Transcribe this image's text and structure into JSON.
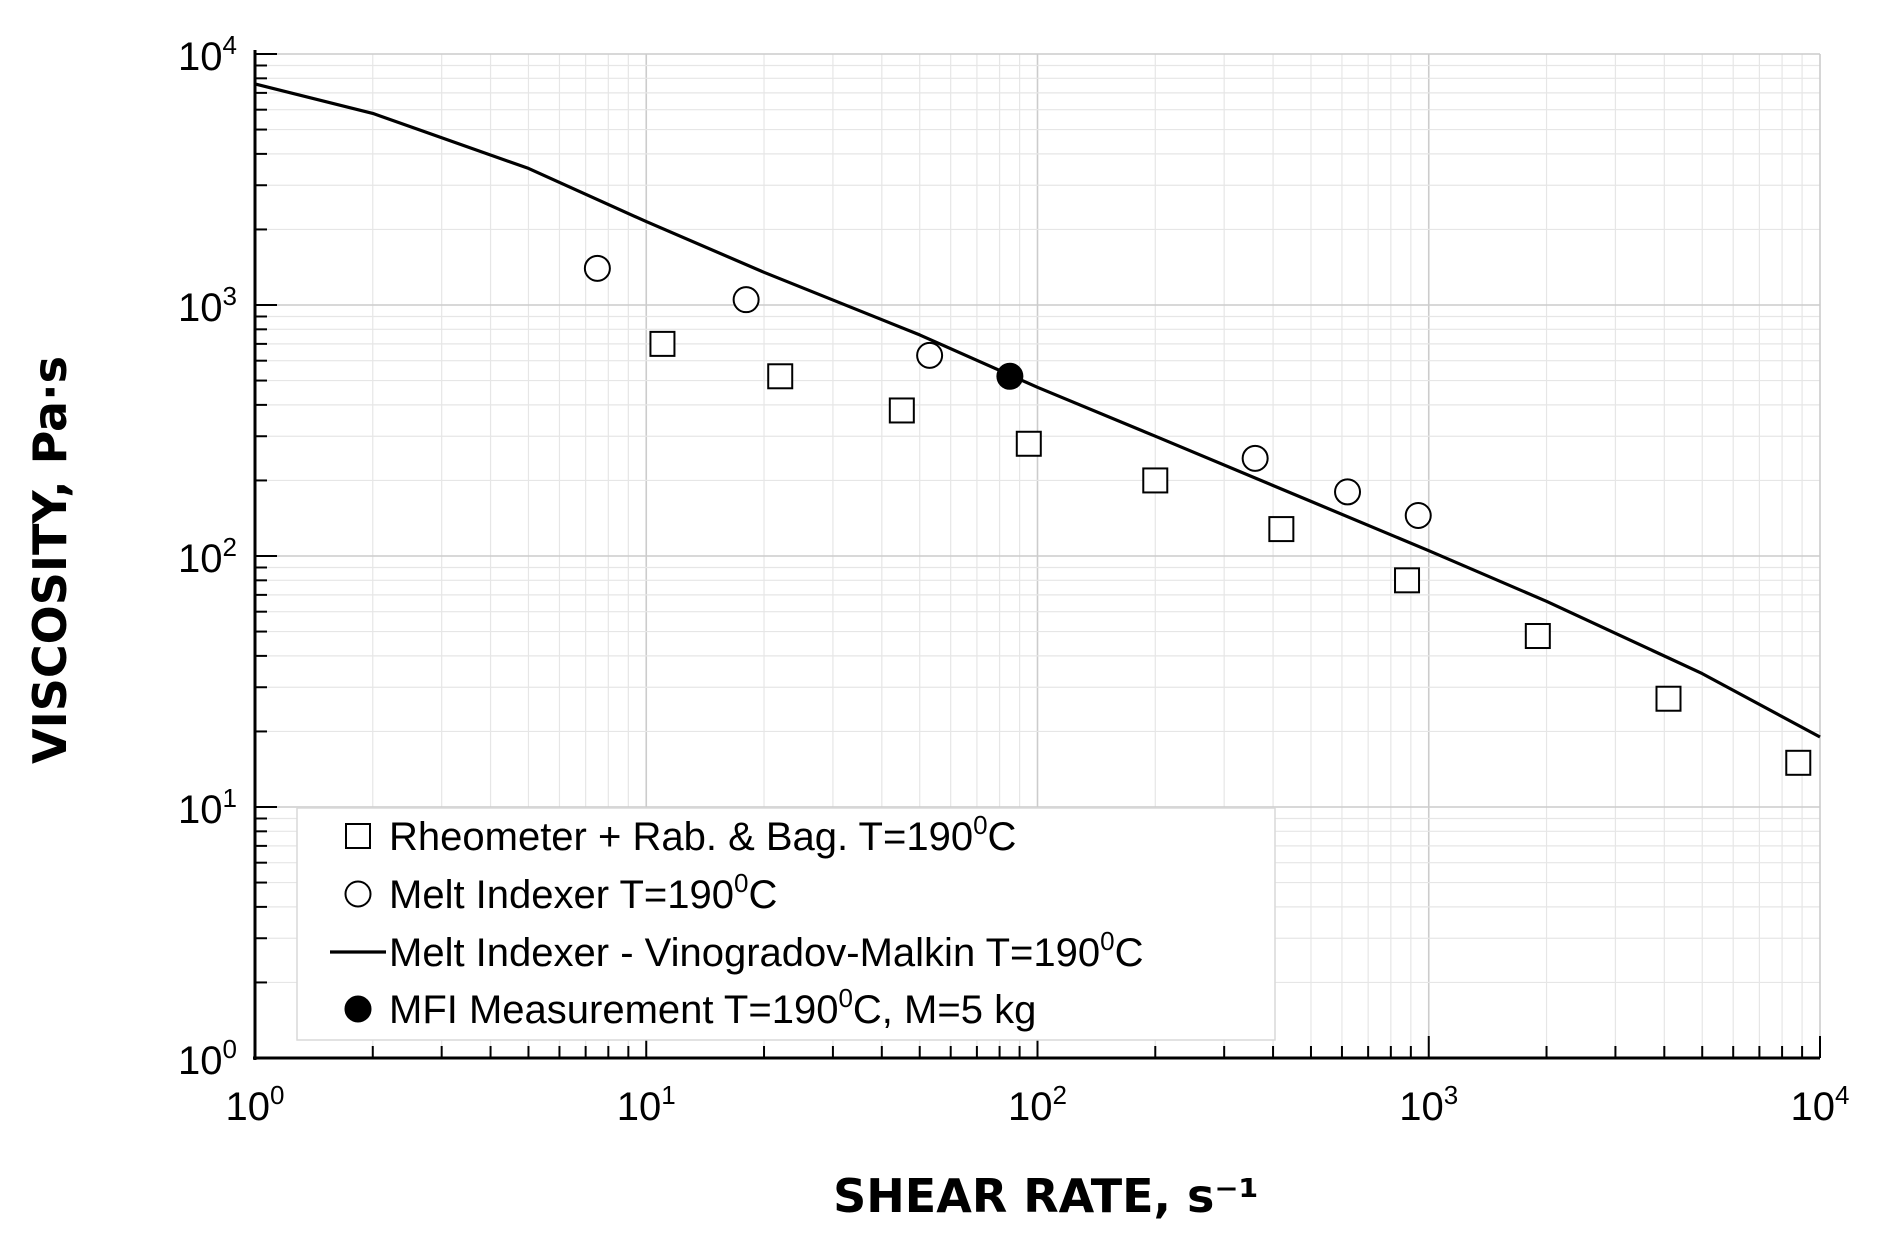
{
  "chart_data": {
    "type": "scatter",
    "x_scale": "log",
    "y_scale": "log",
    "xlim": [
      1,
      10000
    ],
    "ylim": [
      1,
      10000
    ],
    "xlabel": "SHEAR RATE, s⁻¹",
    "ylabel": "VISCOSITY, Pa·s",
    "grid": true,
    "legend_position": "bottom-left",
    "x_ticks": [
      {
        "base": "10",
        "exp": "0",
        "value": 1
      },
      {
        "base": "10",
        "exp": "1",
        "value": 10
      },
      {
        "base": "10",
        "exp": "2",
        "value": 100
      },
      {
        "base": "10",
        "exp": "3",
        "value": 1000
      },
      {
        "base": "10",
        "exp": "4",
        "value": 10000
      }
    ],
    "y_ticks": [
      {
        "base": "10",
        "exp": "0",
        "value": 1
      },
      {
        "base": "10",
        "exp": "1",
        "value": 10
      },
      {
        "base": "10",
        "exp": "2",
        "value": 100
      },
      {
        "base": "10",
        "exp": "3",
        "value": 1000
      },
      {
        "base": "10",
        "exp": "4",
        "value": 10000
      }
    ],
    "series": [
      {
        "name": "Rheometer + Rab. & Bag. T=190⁰C",
        "legend": {
          "main": "Rheometer + Rab. & Bag. T=190",
          "sup": "0",
          "tail": "C"
        },
        "marker": "square-open",
        "points": [
          {
            "x": 11,
            "y": 700
          },
          {
            "x": 22,
            "y": 520
          },
          {
            "x": 45,
            "y": 380
          },
          {
            "x": 95,
            "y": 280
          },
          {
            "x": 200,
            "y": 200
          },
          {
            "x": 420,
            "y": 128
          },
          {
            "x": 880,
            "y": 80
          },
          {
            "x": 1900,
            "y": 48
          },
          {
            "x": 4100,
            "y": 27
          },
          {
            "x": 8800,
            "y": 15
          }
        ]
      },
      {
        "name": "Melt Indexer T=190⁰C",
        "legend": {
          "main": "Melt Indexer T=190",
          "sup": "0",
          "tail": "C"
        },
        "marker": "circle-open",
        "points": [
          {
            "x": 7.5,
            "y": 1400
          },
          {
            "x": 18,
            "y": 1050
          },
          {
            "x": 53,
            "y": 630
          },
          {
            "x": 360,
            "y": 245
          },
          {
            "x": 620,
            "y": 180
          },
          {
            "x": 940,
            "y": 145
          }
        ]
      },
      {
        "name": "Melt Indexer - Vinogradov-Malkin T=190⁰C",
        "legend": {
          "main": "Melt Indexer - Vinogradov-Malkin T=190",
          "sup": "0",
          "tail": "C"
        },
        "marker": "line",
        "points": [
          {
            "x": 1,
            "y": 7600
          },
          {
            "x": 2,
            "y": 5800
          },
          {
            "x": 5,
            "y": 3500
          },
          {
            "x": 10,
            "y": 2150
          },
          {
            "x": 20,
            "y": 1350
          },
          {
            "x": 50,
            "y": 760
          },
          {
            "x": 100,
            "y": 470
          },
          {
            "x": 200,
            "y": 300
          },
          {
            "x": 500,
            "y": 165
          },
          {
            "x": 1000,
            "y": 105
          },
          {
            "x": 2000,
            "y": 66
          },
          {
            "x": 5000,
            "y": 34
          },
          {
            "x": 10000,
            "y": 19
          }
        ]
      },
      {
        "name": "MFI Measurement T=190⁰C, M=5 kg",
        "legend": {
          "main": "MFI Measurement T=190",
          "sup": "0",
          "tail": "C, M=5 kg"
        },
        "marker": "circle-filled",
        "points": [
          {
            "x": 85,
            "y": 520
          }
        ]
      }
    ]
  }
}
